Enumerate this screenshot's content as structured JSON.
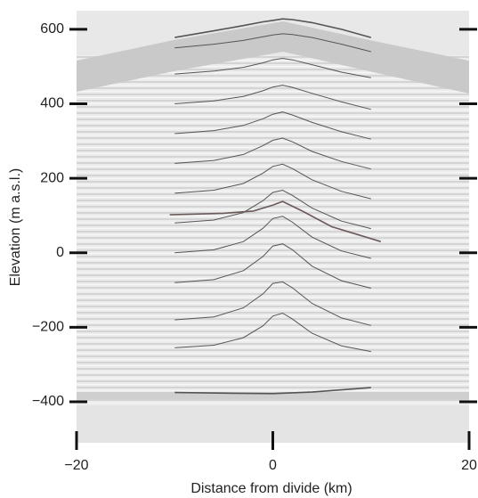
{
  "chart_data": {
    "type": "line",
    "xlabel": "Distance from divide (km)",
    "ylabel": "Elevation (m a.s.l.)",
    "xlim": [
      -20,
      20
    ],
    "ylim": [
      -510,
      650
    ],
    "xticks": [
      {
        "value": -20,
        "label": "−20"
      },
      0,
      20
    ],
    "yticks": [
      {
        "value": -400,
        "label": "−400"
      },
      {
        "value": -200,
        "label": "−200"
      },
      0,
      200,
      400,
      600
    ],
    "series": [
      {
        "color": "#555555",
        "x": [
          -10,
          -6,
          -3,
          -1,
          0,
          1,
          2,
          4,
          7,
          10
        ],
        "values": [
          578,
          596,
          610,
          620,
          624,
          628,
          626,
          618,
          600,
          578
        ]
      },
      {
        "color": "#555555",
        "x": [
          -10,
          -6,
          -3,
          -1,
          0,
          1,
          2,
          4,
          7,
          10
        ],
        "values": [
          550,
          560,
          570,
          580,
          585,
          588,
          586,
          578,
          560,
          540
        ]
      },
      {
        "color": "#555555",
        "x": [
          -10,
          -6,
          -3,
          -1,
          0,
          1,
          2,
          4,
          7,
          10
        ],
        "values": [
          480,
          488,
          498,
          510,
          518,
          522,
          518,
          505,
          485,
          470
        ]
      },
      {
        "color": "#555555",
        "x": [
          -10,
          -6,
          -3,
          -1,
          0,
          1,
          2,
          4,
          7,
          10
        ],
        "values": [
          400,
          408,
          420,
          435,
          445,
          450,
          444,
          428,
          405,
          385
        ]
      },
      {
        "color": "#555555",
        "x": [
          -10,
          -6,
          -3,
          -1,
          0,
          1,
          2,
          4,
          7,
          10
        ],
        "values": [
          320,
          328,
          342,
          360,
          372,
          378,
          370,
          350,
          325,
          305
        ]
      },
      {
        "color": "#555555",
        "x": [
          -10,
          -6,
          -3,
          -1,
          0,
          1,
          2,
          4,
          7,
          10
        ],
        "values": [
          240,
          248,
          264,
          288,
          302,
          308,
          298,
          272,
          245,
          225
        ]
      },
      {
        "color": "#555555",
        "x": [
          -10,
          -6,
          -3,
          -1,
          0,
          1,
          2,
          4,
          7,
          10
        ],
        "values": [
          160,
          168,
          186,
          214,
          232,
          238,
          226,
          196,
          165,
          145
        ]
      },
      {
        "color": "#555555",
        "x": [
          -10,
          -6,
          -3,
          -1,
          0,
          1,
          2,
          4,
          7,
          10
        ],
        "values": [
          80,
          88,
          108,
          140,
          162,
          168,
          154,
          120,
          85,
          65
        ]
      },
      {
        "color": "#555555",
        "x": [
          -10,
          -6,
          -3,
          -1,
          0,
          1,
          2,
          4,
          7,
          10
        ],
        "values": [
          0,
          8,
          30,
          66,
          92,
          98,
          82,
          42,
          5,
          -15
        ]
      },
      {
        "color": "#555555",
        "x": [
          -10,
          -6,
          -3,
          -1,
          0,
          1,
          2,
          4,
          7,
          10
        ],
        "values": [
          -80,
          -72,
          -48,
          -10,
          18,
          24,
          8,
          -36,
          -75,
          -95
        ]
      },
      {
        "color": "#555555",
        "x": [
          -10,
          -6,
          -3,
          -1,
          0,
          1,
          2,
          4,
          7,
          10
        ],
        "values": [
          -180,
          -172,
          -148,
          -110,
          -82,
          -78,
          -94,
          -136,
          -175,
          -195
        ]
      },
      {
        "color": "#555555",
        "x": [
          -10,
          -6,
          -3,
          -1,
          0,
          1,
          2,
          4,
          7,
          10
        ],
        "values": [
          -255,
          -248,
          -228,
          -196,
          -170,
          -162,
          -178,
          -216,
          -250,
          -265
        ]
      },
      {
        "color": "#6b5a5a",
        "x": [
          -10.5,
          -5,
          -2,
          0,
          1,
          3,
          6,
          11
        ],
        "values": [
          102,
          106,
          112,
          128,
          138,
          112,
          70,
          30
        ]
      },
      {
        "color": "#555555",
        "x": [
          -10,
          -4,
          0,
          4,
          10
        ],
        "values": [
          -375,
          -377,
          -378,
          -374,
          -362
        ]
      }
    ]
  }
}
